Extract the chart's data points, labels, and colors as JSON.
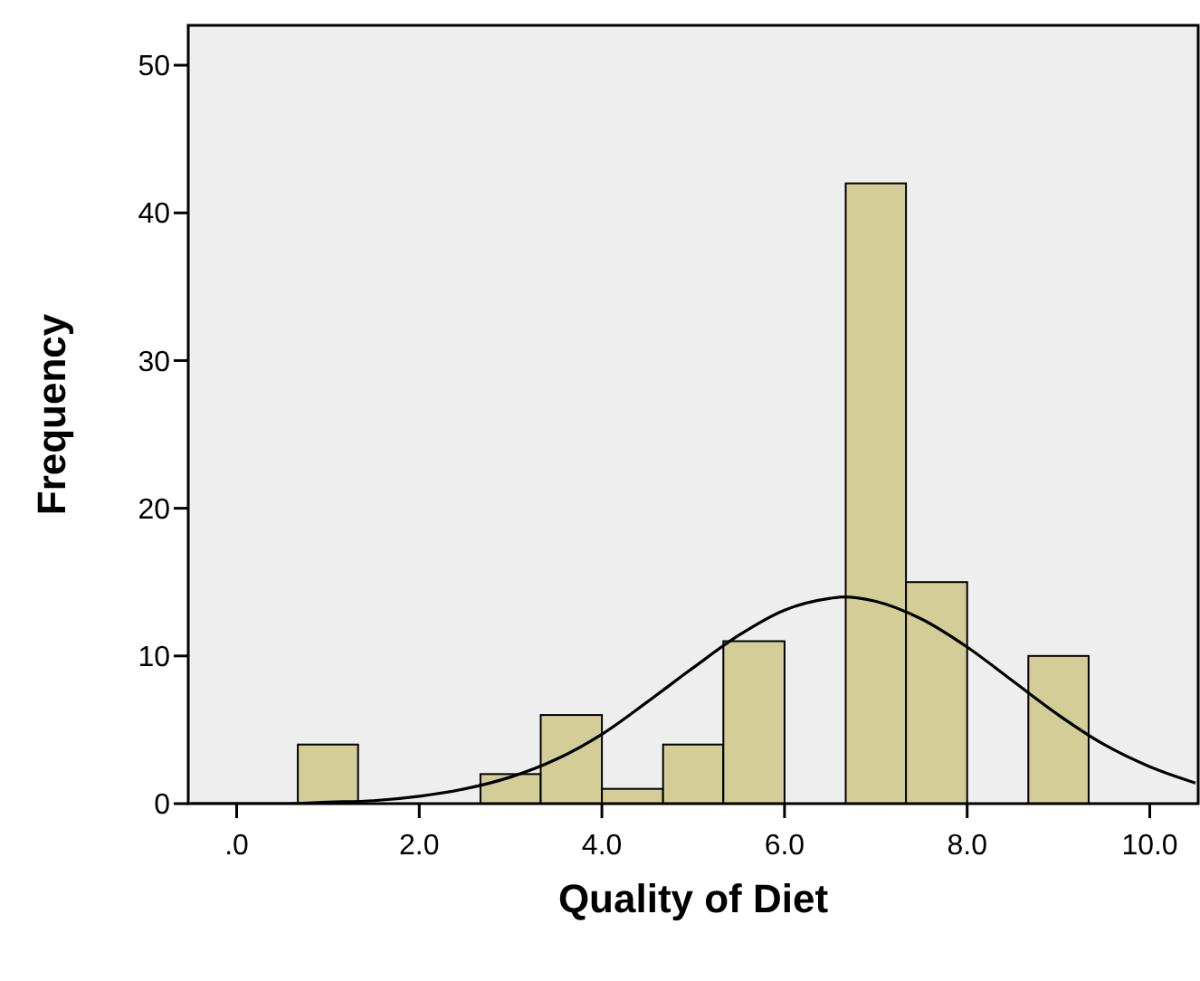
{
  "chart_data": {
    "type": "histogram",
    "xlabel": "Quality of Diet",
    "ylabel": "Frequency",
    "xlim": [
      -0.53,
      10.53
    ],
    "ylim": [
      0,
      52.7
    ],
    "xticks": [
      {
        "value": 0,
        "label": ".0"
      },
      {
        "value": 2,
        "label": "2.0"
      },
      {
        "value": 4,
        "label": "4.0"
      },
      {
        "value": 6,
        "label": "6.0"
      },
      {
        "value": 8,
        "label": "8.0"
      },
      {
        "value": 10,
        "label": "10.0"
      }
    ],
    "yticks": [
      0,
      10,
      20,
      30,
      40,
      50
    ],
    "grid": false,
    "series": [
      {
        "color": "#d3ce97",
        "bins": [
          0.67,
          1.33,
          2.67,
          3.33,
          4.0,
          4.67,
          5.33,
          6.0,
          6.67,
          7.33,
          8.0,
          8.67,
          9.33
        ],
        "values": [
          4,
          0,
          2,
          6,
          1,
          4,
          11,
          0,
          42,
          15,
          0,
          10
        ]
      },
      {
        "type": "line",
        "color": "#000000",
        "x": [
          -0.5,
          0,
          0.5,
          1,
          1.5,
          2,
          2.5,
          3,
          3.5,
          4,
          4.5,
          5,
          5.5,
          6,
          6.5,
          6.65,
          7,
          7.5,
          8,
          8.5,
          9,
          9.5,
          10,
          10.5
        ],
        "values": [
          0,
          0,
          0,
          0.1,
          0.2,
          0.5,
          1,
          1.8,
          3,
          4.7,
          6.9,
          9.2,
          11.4,
          13.1,
          13.9,
          14,
          13.7,
          12.5,
          10.6,
          8.3,
          6,
          4,
          2.5,
          1.4
        ]
      }
    ]
  }
}
